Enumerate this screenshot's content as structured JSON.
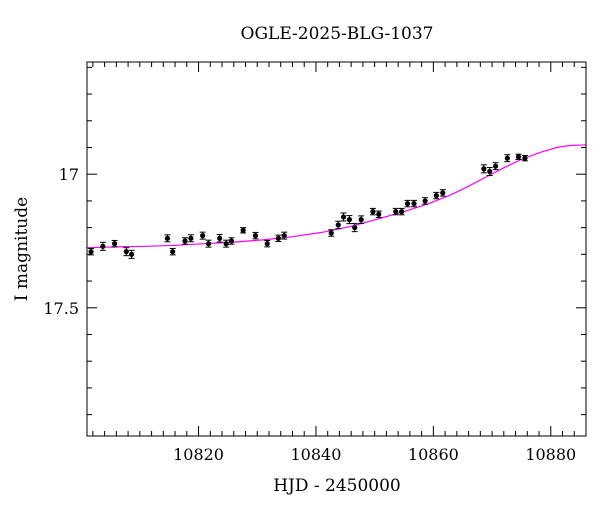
{
  "chart_data": {
    "type": "scatter",
    "title": "OGLE-2025-BLG-1037",
    "xlabel": "HJD - 2450000",
    "ylabel": "I magnitude",
    "xlim": [
      10801,
      10886
    ],
    "ylim": [
      17.98,
      16.58
    ],
    "y_inverted": true,
    "x_ticks": [
      10820,
      10840,
      10860,
      10880
    ],
    "x_tick_labels": [
      "10820",
      "10840",
      "10860",
      "10880"
    ],
    "y_ticks": [
      17.0,
      17.5
    ],
    "y_tick_labels": [
      "17",
      "17.5"
    ],
    "x_minor_step": 2,
    "y_minor_step": 0.1,
    "grid": false,
    "point_color": "#000000",
    "model_color": "#ff00ff",
    "series": [
      {
        "kind": "observations",
        "x": [
          10801.7,
          10803.7,
          10805.7,
          10807.7,
          10808.6,
          10814.7,
          10815.6,
          10817.7,
          10818.7,
          10820.7,
          10821.7,
          10823.6,
          10824.7,
          10825.6,
          10827.6,
          10829.7,
          10831.7,
          10833.6,
          10834.6,
          10842.6,
          10843.8,
          10844.7,
          10845.7,
          10846.6,
          10847.7,
          10849.7,
          10850.7,
          10853.6,
          10854.6,
          10855.6,
          10856.7,
          10858.6,
          10860.5,
          10861.6,
          10868.6,
          10869.6,
          10870.6,
          10872.6,
          10874.5,
          10875.6
        ],
        "y": [
          17.29,
          17.27,
          17.26,
          17.29,
          17.3,
          17.24,
          17.29,
          17.25,
          17.24,
          17.23,
          17.26,
          17.24,
          17.26,
          17.25,
          17.21,
          17.23,
          17.26,
          17.24,
          17.23,
          17.22,
          17.19,
          17.16,
          17.17,
          17.2,
          17.17,
          17.14,
          17.15,
          17.14,
          17.14,
          17.11,
          17.11,
          17.1,
          17.08,
          17.07,
          16.98,
          16.99,
          16.97,
          16.94,
          16.935,
          16.94
        ],
        "err": [
          0.012,
          0.015,
          0.012,
          0.015,
          0.015,
          0.013,
          0.012,
          0.012,
          0.013,
          0.013,
          0.013,
          0.014,
          0.013,
          0.012,
          0.01,
          0.012,
          0.012,
          0.012,
          0.013,
          0.012,
          0.014,
          0.015,
          0.015,
          0.015,
          0.014,
          0.012,
          0.012,
          0.012,
          0.012,
          0.012,
          0.012,
          0.012,
          0.012,
          0.012,
          0.015,
          0.015,
          0.013,
          0.013,
          0.01,
          0.01
        ]
      },
      {
        "kind": "model",
        "x": [
          10801,
          10806,
          10811,
          10816,
          10821,
          10826,
          10831,
          10836,
          10841,
          10846,
          10851,
          10855,
          10859,
          10863,
          10866,
          10869,
          10872,
          10875,
          10878,
          10881,
          10883,
          10886
        ],
        "y": [
          17.275,
          17.272,
          17.27,
          17.266,
          17.26,
          17.254,
          17.246,
          17.234,
          17.218,
          17.195,
          17.165,
          17.14,
          17.112,
          17.077,
          17.045,
          17.01,
          16.976,
          16.945,
          16.92,
          16.9,
          16.893,
          16.89
        ]
      }
    ]
  }
}
